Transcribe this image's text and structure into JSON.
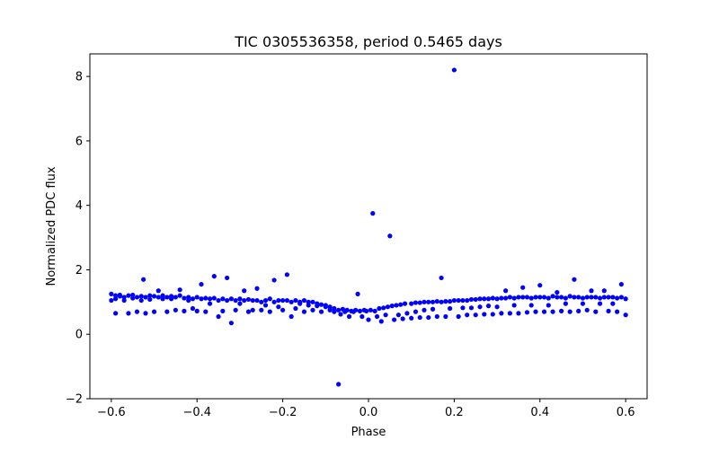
{
  "chart_data": {
    "type": "scatter",
    "title": "TIC 0305536358, period 0.5465 days",
    "xlabel": "Phase",
    "ylabel": "Normalized PDC flux",
    "xlim": [
      -0.65,
      0.65
    ],
    "ylim": [
      -2.0,
      8.7
    ],
    "xticks": [
      -0.6,
      -0.4,
      -0.2,
      0.0,
      0.2,
      0.4,
      0.6
    ],
    "xtick_labels": [
      "−0.6",
      "−0.4",
      "−0.2",
      "0.0",
      "0.2",
      "0.4",
      "0.6"
    ],
    "yticks": [
      -2,
      0,
      2,
      4,
      6,
      8
    ],
    "ytick_labels": [
      "−2",
      "0",
      "2",
      "4",
      "6",
      "8"
    ],
    "grid": false,
    "marker_color": "#0000ff",
    "series": [
      {
        "points": [
          [
            -0.6,
            1.25
          ],
          [
            -0.6,
            1.05
          ],
          [
            -0.59,
            1.2
          ],
          [
            -0.59,
            1.1
          ],
          [
            -0.59,
            0.65
          ],
          [
            -0.58,
            1.18
          ],
          [
            -0.58,
            1.22
          ],
          [
            -0.57,
            1.15
          ],
          [
            -0.57,
            1.05
          ],
          [
            -0.56,
            1.2
          ],
          [
            -0.56,
            0.65
          ],
          [
            -0.55,
            1.12
          ],
          [
            -0.55,
            1.22
          ],
          [
            -0.54,
            1.15
          ],
          [
            -0.54,
            0.7
          ],
          [
            -0.53,
            1.18
          ],
          [
            -0.53,
            1.05
          ],
          [
            -0.525,
            1.7
          ],
          [
            -0.52,
            1.15
          ],
          [
            -0.52,
            0.65
          ],
          [
            -0.51,
            1.2
          ],
          [
            -0.51,
            1.08
          ],
          [
            -0.5,
            1.18
          ],
          [
            -0.5,
            0.7
          ],
          [
            -0.49,
            1.15
          ],
          [
            -0.49,
            1.35
          ],
          [
            -0.48,
            1.1
          ],
          [
            -0.48,
            1.2
          ],
          [
            -0.47,
            1.15
          ],
          [
            -0.47,
            0.7
          ],
          [
            -0.46,
            1.1
          ],
          [
            -0.46,
            1.18
          ],
          [
            -0.45,
            1.15
          ],
          [
            -0.45,
            0.75
          ],
          [
            -0.44,
            1.2
          ],
          [
            -0.44,
            1.38
          ],
          [
            -0.43,
            1.12
          ],
          [
            -0.43,
            0.72
          ],
          [
            -0.42,
            1.15
          ],
          [
            -0.42,
            1.05
          ],
          [
            -0.41,
            1.1
          ],
          [
            -0.41,
            0.8
          ],
          [
            -0.4,
            1.15
          ],
          [
            -0.4,
            0.72
          ],
          [
            -0.39,
            1.55
          ],
          [
            -0.39,
            1.1
          ],
          [
            -0.38,
            1.12
          ],
          [
            -0.38,
            0.7
          ],
          [
            -0.37,
            1.1
          ],
          [
            -0.37,
            0.95
          ],
          [
            -0.36,
            1.8
          ],
          [
            -0.36,
            1.12
          ],
          [
            -0.35,
            1.05
          ],
          [
            -0.35,
            0.55
          ],
          [
            -0.34,
            1.1
          ],
          [
            -0.34,
            0.72
          ],
          [
            -0.33,
            1.75
          ],
          [
            -0.33,
            1.05
          ],
          [
            -0.32,
            0.35
          ],
          [
            -0.32,
            1.1
          ],
          [
            -0.31,
            1.05
          ],
          [
            -0.31,
            0.75
          ],
          [
            -0.3,
            1.1
          ],
          [
            -0.3,
            0.95
          ],
          [
            -0.29,
            1.35
          ],
          [
            -0.29,
            1.05
          ],
          [
            -0.28,
            0.7
          ],
          [
            -0.28,
            1.08
          ],
          [
            -0.27,
            1.05
          ],
          [
            -0.27,
            0.75
          ],
          [
            -0.26,
            1.42
          ],
          [
            -0.26,
            1.05
          ],
          [
            -0.25,
            1.0
          ],
          [
            -0.25,
            0.75
          ],
          [
            -0.24,
            1.05
          ],
          [
            -0.24,
            0.9
          ],
          [
            -0.23,
            1.1
          ],
          [
            -0.23,
            0.7
          ],
          [
            -0.22,
            1.68
          ],
          [
            -0.22,
            1.0
          ],
          [
            -0.21,
            1.05
          ],
          [
            -0.21,
            0.85
          ],
          [
            -0.2,
            1.05
          ],
          [
            -0.2,
            0.75
          ],
          [
            -0.19,
            1.85
          ],
          [
            -0.19,
            1.05
          ],
          [
            -0.18,
            0.55
          ],
          [
            -0.18,
            1.0
          ],
          [
            -0.17,
            1.05
          ],
          [
            -0.17,
            0.8
          ],
          [
            -0.16,
            1.0
          ],
          [
            -0.16,
            0.95
          ],
          [
            -0.15,
            1.05
          ],
          [
            -0.15,
            0.7
          ],
          [
            -0.14,
            1.0
          ],
          [
            -0.14,
            0.9
          ],
          [
            -0.13,
            1.0
          ],
          [
            -0.13,
            0.75
          ],
          [
            -0.12,
            0.95
          ],
          [
            -0.12,
            0.88
          ],
          [
            -0.11,
            0.92
          ],
          [
            -0.11,
            0.7
          ],
          [
            -0.1,
            0.9
          ],
          [
            -0.1,
            0.85
          ],
          [
            -0.09,
            0.85
          ],
          [
            -0.09,
            0.75
          ],
          [
            -0.08,
            0.8
          ],
          [
            -0.08,
            0.7
          ],
          [
            -0.07,
            -1.55
          ],
          [
            -0.07,
            0.75
          ],
          [
            -0.065,
            0.62
          ],
          [
            -0.06,
            0.78
          ],
          [
            -0.055,
            0.7
          ],
          [
            -0.05,
            0.75
          ],
          [
            -0.045,
            0.55
          ],
          [
            -0.04,
            0.72
          ],
          [
            -0.035,
            0.7
          ],
          [
            -0.03,
            0.75
          ],
          [
            -0.025,
            1.25
          ],
          [
            -0.02,
            0.72
          ],
          [
            -0.015,
            0.55
          ],
          [
            -0.01,
            0.75
          ],
          [
            -0.005,
            0.72
          ],
          [
            0.0,
            0.45
          ],
          [
            0.005,
            0.75
          ],
          [
            0.01,
            3.75
          ],
          [
            0.015,
            0.72
          ],
          [
            0.02,
            0.55
          ],
          [
            0.025,
            0.8
          ],
          [
            0.03,
            0.4
          ],
          [
            0.035,
            0.82
          ],
          [
            0.04,
            0.6
          ],
          [
            0.045,
            0.85
          ],
          [
            0.05,
            3.05
          ],
          [
            0.055,
            0.88
          ],
          [
            0.06,
            0.45
          ],
          [
            0.065,
            0.9
          ],
          [
            0.07,
            0.6
          ],
          [
            0.075,
            0.92
          ],
          [
            0.08,
            0.48
          ],
          [
            0.085,
            0.95
          ],
          [
            0.09,
            0.65
          ],
          [
            0.1,
            0.95
          ],
          [
            0.1,
            0.5
          ],
          [
            0.11,
            0.98
          ],
          [
            0.11,
            0.7
          ],
          [
            0.12,
            0.98
          ],
          [
            0.12,
            0.52
          ],
          [
            0.13,
            1.0
          ],
          [
            0.13,
            0.75
          ],
          [
            0.14,
            1.0
          ],
          [
            0.14,
            0.52
          ],
          [
            0.15,
            1.0
          ],
          [
            0.15,
            0.78
          ],
          [
            0.16,
            1.02
          ],
          [
            0.16,
            0.55
          ],
          [
            0.17,
            1.75
          ],
          [
            0.17,
            1.0
          ],
          [
            0.18,
            1.02
          ],
          [
            0.18,
            0.55
          ],
          [
            0.19,
            1.02
          ],
          [
            0.19,
            0.8
          ],
          [
            0.2,
            8.2
          ],
          [
            0.2,
            1.05
          ],
          [
            0.21,
            1.05
          ],
          [
            0.21,
            0.55
          ],
          [
            0.22,
            1.05
          ],
          [
            0.22,
            0.82
          ],
          [
            0.23,
            1.05
          ],
          [
            0.23,
            0.6
          ],
          [
            0.24,
            1.08
          ],
          [
            0.24,
            0.82
          ],
          [
            0.25,
            1.08
          ],
          [
            0.25,
            0.6
          ],
          [
            0.26,
            1.1
          ],
          [
            0.26,
            0.85
          ],
          [
            0.27,
            1.1
          ],
          [
            0.27,
            0.62
          ],
          [
            0.28,
            1.1
          ],
          [
            0.28,
            0.88
          ],
          [
            0.29,
            1.12
          ],
          [
            0.29,
            0.62
          ],
          [
            0.3,
            1.1
          ],
          [
            0.3,
            0.85
          ],
          [
            0.31,
            1.12
          ],
          [
            0.31,
            0.65
          ],
          [
            0.32,
            1.35
          ],
          [
            0.32,
            1.12
          ],
          [
            0.33,
            1.15
          ],
          [
            0.33,
            0.65
          ],
          [
            0.34,
            1.12
          ],
          [
            0.34,
            0.9
          ],
          [
            0.35,
            1.15
          ],
          [
            0.35,
            0.65
          ],
          [
            0.36,
            1.45
          ],
          [
            0.36,
            1.15
          ],
          [
            0.37,
            1.15
          ],
          [
            0.37,
            0.68
          ],
          [
            0.38,
            1.12
          ],
          [
            0.38,
            0.9
          ],
          [
            0.39,
            1.15
          ],
          [
            0.39,
            0.7
          ],
          [
            0.4,
            1.52
          ],
          [
            0.4,
            1.15
          ],
          [
            0.41,
            1.15
          ],
          [
            0.41,
            0.7
          ],
          [
            0.42,
            1.12
          ],
          [
            0.42,
            0.9
          ],
          [
            0.43,
            1.18
          ],
          [
            0.43,
            0.7
          ],
          [
            0.44,
            1.15
          ],
          [
            0.44,
            1.3
          ],
          [
            0.45,
            1.15
          ],
          [
            0.45,
            0.72
          ],
          [
            0.46,
            1.12
          ],
          [
            0.46,
            0.95
          ],
          [
            0.47,
            1.18
          ],
          [
            0.47,
            0.7
          ],
          [
            0.48,
            1.7
          ],
          [
            0.48,
            1.15
          ],
          [
            0.49,
            1.15
          ],
          [
            0.49,
            0.72
          ],
          [
            0.5,
            1.12
          ],
          [
            0.5,
            0.95
          ],
          [
            0.51,
            1.15
          ],
          [
            0.51,
            0.75
          ],
          [
            0.52,
            1.35
          ],
          [
            0.52,
            1.15
          ],
          [
            0.53,
            1.15
          ],
          [
            0.53,
            0.7
          ],
          [
            0.54,
            1.12
          ],
          [
            0.54,
            0.95
          ],
          [
            0.55,
            1.35
          ],
          [
            0.55,
            1.15
          ],
          [
            0.56,
            1.15
          ],
          [
            0.56,
            0.72
          ],
          [
            0.57,
            1.15
          ],
          [
            0.57,
            0.95
          ],
          [
            0.58,
            1.12
          ],
          [
            0.58,
            0.7
          ],
          [
            0.59,
            1.55
          ],
          [
            0.59,
            1.15
          ],
          [
            0.6,
            1.1
          ],
          [
            0.6,
            0.6
          ]
        ]
      }
    ]
  }
}
